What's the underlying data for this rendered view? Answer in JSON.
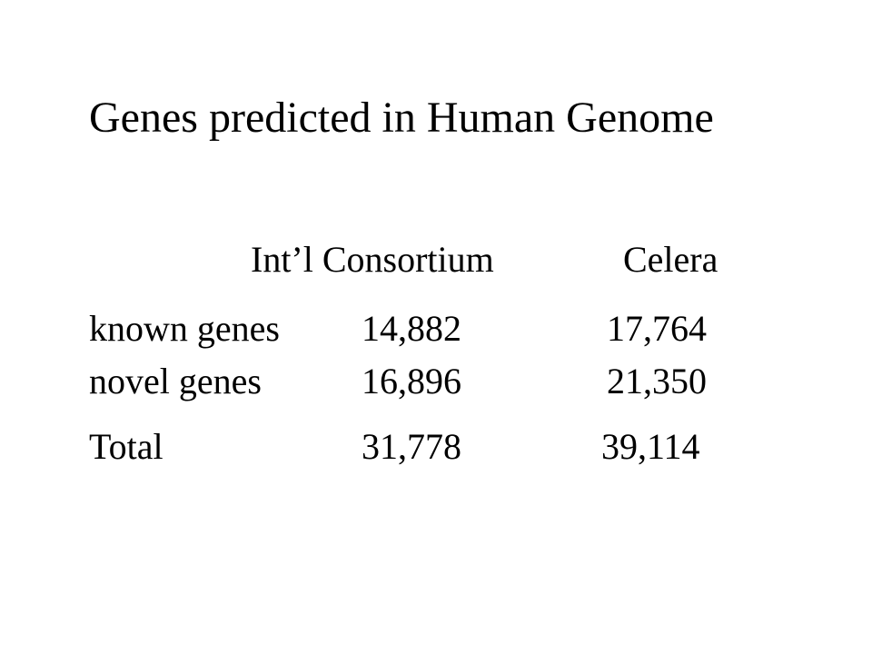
{
  "slide": {
    "title": "Genes predicted in Human Genome",
    "table": {
      "headers": [
        "",
        "Int’l Consortium",
        "Celera"
      ],
      "rows": [
        [
          "known genes",
          "14,882",
          "17,764"
        ],
        [
          "novel genes",
          "16,896",
          "21,350"
        ],
        [
          "Total",
          "31,778",
          "39,114"
        ]
      ]
    }
  }
}
